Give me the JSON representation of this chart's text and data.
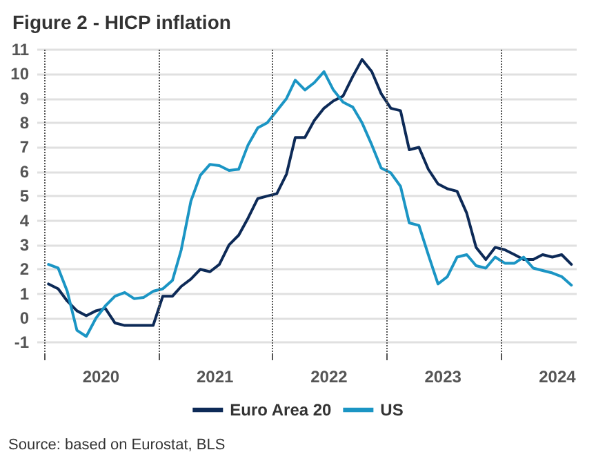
{
  "chart_data": {
    "type": "line",
    "title": "Figure 2 - HICP inflation",
    "annotations": [
      "Source: based on Eurostat, BLS"
    ],
    "x": [
      "2020-01-15",
      "2020-02-15",
      "2020-03-15",
      "2020-04-15",
      "2020-05-15",
      "2020-06-15",
      "2020-07-15",
      "2020-08-15",
      "2020-09-15",
      "2020-10-15",
      "2020-11-15",
      "2020-12-15",
      "2021-01-15",
      "2021-02-15",
      "2021-03-15",
      "2021-04-15",
      "2021-05-15",
      "2021-06-15",
      "2021-07-15",
      "2021-08-15",
      "2021-09-15",
      "2021-10-15",
      "2021-11-15",
      "2021-12-15",
      "2022-01-15",
      "2022-02-15",
      "2022-03-15",
      "2022-04-15",
      "2022-05-15",
      "2022-06-15",
      "2022-07-15",
      "2022-08-15",
      "2022-09-15",
      "2022-10-15",
      "2022-11-15",
      "2022-12-15",
      "2023-01-15",
      "2023-02-15",
      "2023-03-15",
      "2023-04-15",
      "2023-05-15",
      "2023-06-15",
      "2023-07-15",
      "2023-08-15",
      "2023-09-15",
      "2023-10-15",
      "2023-11-15",
      "2023-12-15",
      "2024-01-15",
      "2024-02-15",
      "2024-03-15",
      "2024-04-15",
      "2024-05-15",
      "2024-06-15",
      "2024-07-15",
      "2024-08-15"
    ],
    "series": [
      {
        "name": "Euro Area 20",
        "color": "#0d2a57",
        "values": [
          1.4,
          1.2,
          0.7,
          0.3,
          0.1,
          0.3,
          0.4,
          -0.2,
          -0.3,
          -0.3,
          -0.3,
          -0.3,
          0.9,
          0.9,
          1.3,
          1.6,
          2.0,
          1.9,
          2.2,
          3.0,
          3.4,
          4.1,
          4.9,
          5.0,
          5.1,
          5.9,
          7.4,
          7.4,
          8.1,
          8.6,
          8.9,
          9.1,
          9.9,
          10.6,
          10.1,
          9.2,
          8.6,
          8.5,
          6.9,
          7.0,
          6.1,
          5.5,
          5.3,
          5.2,
          4.3,
          2.9,
          2.4,
          2.9,
          2.8,
          2.6,
          2.4,
          2.4,
          2.6,
          2.5,
          2.6,
          2.2
        ]
      },
      {
        "name": "US",
        "color": "#1b95c4",
        "values": [
          2.2,
          2.05,
          1.1,
          -0.5,
          -0.75,
          0.0,
          0.5,
          0.9,
          1.05,
          0.8,
          0.85,
          1.1,
          1.2,
          1.55,
          2.8,
          4.8,
          5.85,
          6.3,
          6.25,
          6.05,
          6.1,
          7.1,
          7.8,
          8.0,
          8.5,
          9.0,
          9.75,
          9.35,
          9.65,
          10.1,
          9.35,
          8.85,
          8.65,
          8.0,
          7.1,
          6.15,
          5.95,
          5.4,
          3.9,
          3.8,
          2.6,
          1.4,
          1.7,
          2.5,
          2.6,
          2.15,
          2.05,
          2.5,
          2.25,
          2.25,
          2.5,
          2.05,
          1.95,
          1.85,
          1.7,
          1.35
        ]
      }
    ],
    "xlim": [
      "2019-12-10",
      "2024-09-01"
    ],
    "xticks": [
      {
        "value": "2020-01-01",
        "label": null
      },
      {
        "value": "2020-07-01",
        "label": "2020"
      },
      {
        "value": "2021-01-01",
        "label": null
      },
      {
        "value": "2021-07-01",
        "label": "2021"
      },
      {
        "value": "2022-01-01",
        "label": null
      },
      {
        "value": "2022-07-01",
        "label": "2022"
      },
      {
        "value": "2023-01-01",
        "label": null
      },
      {
        "value": "2023-07-01",
        "label": "2023"
      },
      {
        "value": "2024-01-01",
        "label": null
      },
      {
        "value": "2024-07-01",
        "label": "2024"
      }
    ],
    "ylim": [
      -1.5,
      11
    ],
    "yticks": [
      -1,
      0,
      1,
      2,
      3,
      4,
      5,
      6,
      7,
      8,
      9,
      10,
      11
    ],
    "ref_lines": [
      {
        "axis": "x",
        "value": "2020-01-01",
        "color": "#555555",
        "line_style": "dotted"
      },
      {
        "axis": "x",
        "value": "2021-01-01",
        "color": "#555555",
        "line_style": "dotted"
      },
      {
        "axis": "x",
        "value": "2022-01-01",
        "color": "#555555",
        "line_style": "dotted"
      },
      {
        "axis": "x",
        "value": "2023-01-01",
        "color": "#555555",
        "line_style": "dotted"
      },
      {
        "axis": "x",
        "value": "2024-01-01",
        "color": "#555555",
        "line_style": "dotted"
      }
    ],
    "grid": "y",
    "legend": "bottom",
    "marker": "none",
    "line_style": "solid"
  }
}
